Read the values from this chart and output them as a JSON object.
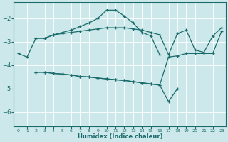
{
  "xlabel": "Humidex (Indice chaleur)",
  "bg_color": "#cce8eb",
  "line_color": "#1a6b6b",
  "xlim": [
    -0.5,
    23.5
  ],
  "ylim": [
    -6.6,
    -1.3
  ],
  "yticks": [
    -6,
    -5,
    -4,
    -3,
    -2
  ],
  "xticks": [
    0,
    1,
    2,
    3,
    4,
    5,
    6,
    7,
    8,
    9,
    10,
    11,
    12,
    13,
    14,
    15,
    16,
    17,
    18,
    19,
    20,
    21,
    22,
    23
  ],
  "line1_x": [
    0,
    1,
    2,
    3,
    4,
    5,
    6,
    7,
    8,
    9,
    10,
    11,
    12,
    13,
    14,
    15,
    16
  ],
  "line1_y": [
    -3.5,
    -3.65,
    -2.85,
    -2.85,
    -2.7,
    -2.6,
    -2.5,
    -2.35,
    -2.2,
    -2.0,
    -1.65,
    -1.65,
    -1.9,
    -2.2,
    -2.6,
    -2.75,
    -3.55
  ],
  "line2_x": [
    2,
    3,
    4,
    5,
    6,
    7,
    8,
    9,
    10,
    11,
    12,
    13,
    14,
    15,
    16,
    17,
    18,
    19,
    20,
    21,
    22,
    23
  ],
  "line2_y": [
    -2.85,
    -2.85,
    -2.7,
    -2.65,
    -2.6,
    -2.55,
    -2.5,
    -2.45,
    -2.4,
    -2.4,
    -2.4,
    -2.45,
    -2.5,
    -2.6,
    -2.7,
    -3.55,
    -2.65,
    -2.5,
    -3.35,
    -3.45,
    -2.75,
    -2.4
  ],
  "line3_x": [
    2,
    3,
    4,
    5,
    6,
    7,
    8,
    9,
    10,
    11,
    12,
    13,
    14,
    15,
    16,
    17,
    18,
    19,
    20,
    21,
    22,
    23
  ],
  "line3_y": [
    -4.3,
    -4.3,
    -4.35,
    -4.38,
    -4.42,
    -4.48,
    -4.5,
    -4.55,
    -4.58,
    -4.62,
    -4.65,
    -4.7,
    -4.75,
    -4.8,
    -4.85,
    -3.65,
    -3.6,
    -3.5,
    -3.5,
    -3.5,
    -3.5,
    -2.55
  ],
  "line4_x": [
    2,
    3,
    4,
    5,
    6,
    7,
    8,
    9,
    10,
    11,
    12,
    13,
    14,
    15,
    16,
    17,
    18
  ],
  "line4_y": [
    -4.3,
    -4.3,
    -4.35,
    -4.38,
    -4.42,
    -4.48,
    -4.5,
    -4.55,
    -4.58,
    -4.62,
    -4.65,
    -4.7,
    -4.75,
    -4.8,
    -4.85,
    -5.55,
    -5.0
  ]
}
